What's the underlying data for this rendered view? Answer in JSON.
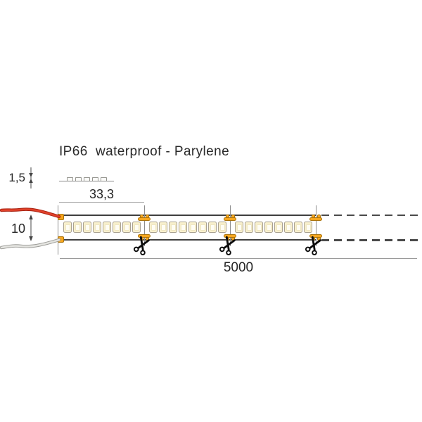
{
  "diagram_title": "IP66  waterproof - Parylene",
  "dimensions": {
    "thickness_label": "1,5",
    "cut_increment_label": "33,3",
    "strip_width_label": "10",
    "total_length_label": "5000"
  },
  "profile_view": {
    "led_bump_count": 5
  },
  "strip": {
    "segment_count": 3,
    "leds_per_segment": 8,
    "cut_point_count": 3
  },
  "icons": {
    "cut_marker": "scissors-icon",
    "positive_wire": "red-wire",
    "negative_wire": "white-wire"
  },
  "colors": {
    "led_fill": "#f8f0cd",
    "led_border": "#a9a190",
    "pad_fill": "#f6a61e",
    "pad_border": "#aa730b",
    "wire_red": "#d93a20",
    "wire_red_dark": "#a8200f",
    "wire_white": "#e4e4e0",
    "wire_white_dark": "#9b9b97",
    "strip_outline": "#3f3f3f",
    "dimension_line": "#9a9a9a",
    "text": "#262626"
  }
}
